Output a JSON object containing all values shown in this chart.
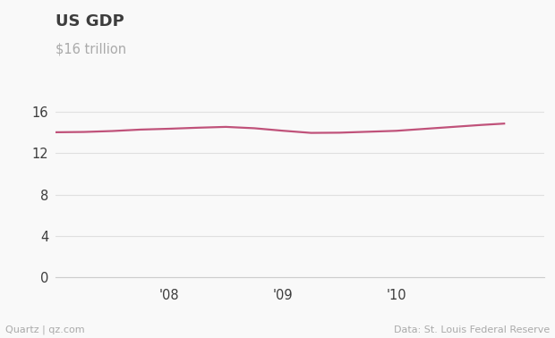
{
  "title": "US GDP",
  "ylabel": "$16 trillion",
  "line_color": "#c0527a",
  "background_color": "#f9f9f9",
  "grid_color": "#e0e0e0",
  "axis_color": "#cccccc",
  "text_color": "#3d3d3d",
  "ylabel_color": "#aaaaaa",
  "footer_color": "#aaaaaa",
  "footer_left": "Quartz | qz.com",
  "footer_right": "Data: St. Louis Federal Reserve",
  "x_tick_labels": [
    "'08",
    "'09",
    "'10"
  ],
  "x_tick_positions": [
    2008.0,
    2009.0,
    2010.0
  ],
  "ylim": [
    0,
    18
  ],
  "yticks": [
    0,
    4,
    8,
    12,
    16
  ],
  "xlim": [
    2007.0,
    2011.3
  ],
  "gdp_data": {
    "quarters": [
      2007.0,
      2007.25,
      2007.5,
      2007.75,
      2008.0,
      2008.25,
      2008.5,
      2008.75,
      2009.0,
      2009.25,
      2009.5,
      2009.75,
      2010.0,
      2010.25,
      2010.5,
      2010.75,
      2010.95
    ],
    "values": [
      14.03,
      14.06,
      14.15,
      14.29,
      14.37,
      14.47,
      14.55,
      14.42,
      14.18,
      13.97,
      13.99,
      14.08,
      14.17,
      14.36,
      14.55,
      14.74,
      14.87
    ]
  }
}
